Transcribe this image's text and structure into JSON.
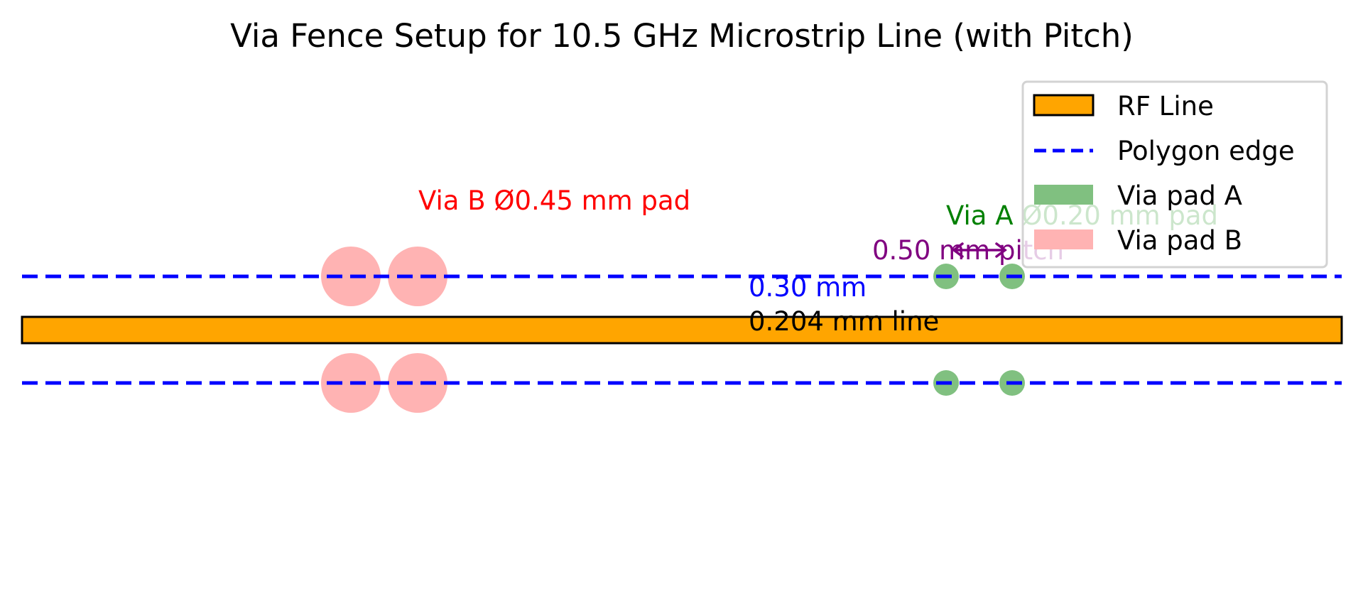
{
  "title": "Via Fence Setup for 10.5 GHz Microstrip Line (with Pitch)",
  "annotations": {
    "via_b": "Via B Ø0.45 mm pad",
    "via_a": "Via A Ø0.20 mm pad",
    "pitch": "0.50 mm pitch",
    "gap": "0.30 mm",
    "line_width": "0.204 mm line"
  },
  "legend": {
    "items": [
      {
        "label": "RF Line",
        "kind": "rect-outlined",
        "color": "#ffa500"
      },
      {
        "label": "Polygon edge",
        "kind": "dashed-line",
        "color": "#0000ff"
      },
      {
        "label": "Via pad A",
        "kind": "patch",
        "color": "#80c080"
      },
      {
        "label": "Via pad B",
        "kind": "patch",
        "color": "#ffb3b3"
      }
    ]
  },
  "colors": {
    "rf_line": "#ffa500",
    "polygon_edge": "#0000ff",
    "via_a": "#80c080",
    "via_b": "#ffb3b3",
    "via_b_text": "#ff0000",
    "via_a_text": "#008000",
    "pitch_text": "#800080",
    "gap_text": "#0000ff"
  }
}
